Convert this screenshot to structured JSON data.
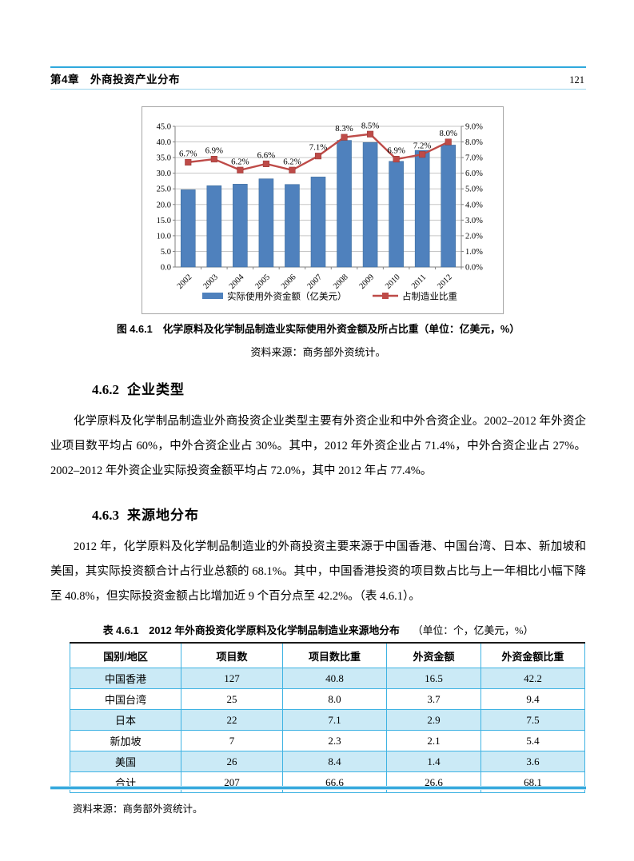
{
  "header": {
    "chapter": "第4章　外商投资产业分布",
    "page_number": "121"
  },
  "figure": {
    "caption": "图 4.6.1　化学原料及化学制品制造业实际使用外资金额及所占比重（单位：亿美元，%）",
    "source": "资料来源：商务部外资统计。"
  },
  "chart_data": {
    "type": "bar+line combo",
    "categories": [
      "2002",
      "2003",
      "2004",
      "2005",
      "2006",
      "2007",
      "2008",
      "2009",
      "2010",
      "2011",
      "2012"
    ],
    "series": [
      {
        "name": "实际使用外资金额（亿美元）",
        "type": "bar",
        "axis": "left",
        "color": "#4F81BD",
        "values": [
          24.7,
          26.0,
          26.5,
          28.2,
          26.4,
          28.8,
          40.5,
          39.8,
          33.8,
          37.3,
          39.0
        ]
      },
      {
        "name": "占制造业比重",
        "type": "line",
        "axis": "right",
        "color": "#BE4B48",
        "values": [
          6.7,
          6.9,
          6.2,
          6.6,
          6.2,
          7.1,
          8.3,
          8.5,
          6.9,
          7.2,
          8.0
        ],
        "labels": [
          "6.7%",
          "6.9%",
          "6.2%",
          "6.6%",
          "6.2%",
          "7.1%",
          "8.3%",
          "8.5%",
          "6.9%",
          "7.2%",
          "8.0%"
        ]
      }
    ],
    "left_axis": {
      "min": 0,
      "max": 45,
      "step": 5,
      "labels": [
        "0.0",
        "5.0",
        "10.0",
        "15.0",
        "20.0",
        "25.0",
        "30.0",
        "35.0",
        "40.0",
        "45.0"
      ]
    },
    "right_axis": {
      "min": 0,
      "max": 9,
      "step": 1,
      "labels": [
        "0.0%",
        "1.0%",
        "2.0%",
        "3.0%",
        "4.0%",
        "5.0%",
        "6.0%",
        "7.0%",
        "8.0%",
        "9.0%"
      ]
    },
    "grid": true,
    "legend_position": "bottom"
  },
  "sections": [
    {
      "number": "4.6.2",
      "title": "企业类型",
      "paragraph": "化学原料及化学制品制造业外商投资企业类型主要有外资企业和中外合资企业。2002–2012 年外资企业项目数平均占 60%，中外合资企业占 30%。其中，2012 年外资企业占 71.4%，中外合资企业占 27%。2002–2012 年外资企业实际投资金额平均占 72.0%，其中 2012 年占 77.4%。"
    },
    {
      "number": "4.6.3",
      "title": "来源地分布",
      "paragraph": "2012 年，化学原料及化学制品制造业的外商投资主要来源于中国香港、中国台湾、日本、新加坡和美国，其实际投资额合计占行业总额的 68.1%。其中，中国香港投资的项目数占比与上一年相比小幅下降至 40.8%，但实际投资金额占比增加近 9 个百分点至 42.2%。（表 4.6.1）。"
    }
  ],
  "table": {
    "title": "表 4.6.1　2012 年外商投资化学原料及化学制品制造业来源地分布",
    "unit": "（单位：个，亿美元，%）",
    "headers": [
      "国别/地区",
      "项目数",
      "项目数比重",
      "外资金额",
      "外资金额比重"
    ],
    "rows": [
      [
        "中国香港",
        "127",
        "40.8",
        "16.5",
        "42.2"
      ],
      [
        "中国台湾",
        "25",
        "8.0",
        "3.7",
        "9.4"
      ],
      [
        "日本",
        "22",
        "7.1",
        "2.9",
        "7.5"
      ],
      [
        "新加坡",
        "7",
        "2.3",
        "2.1",
        "5.4"
      ],
      [
        "美国",
        "26",
        "8.4",
        "1.4",
        "3.6"
      ],
      [
        "合计",
        "207",
        "66.6",
        "26.6",
        "68.1"
      ]
    ],
    "source": "资料来源：商务部外资统计。"
  },
  "colors": {
    "rule_cyan": "#2FA9DD",
    "table_border": "#3FB3E3",
    "row_alt_bg": "#CBEAF6",
    "bar_blue": "#4F81BD",
    "line_red": "#BE4B48"
  }
}
